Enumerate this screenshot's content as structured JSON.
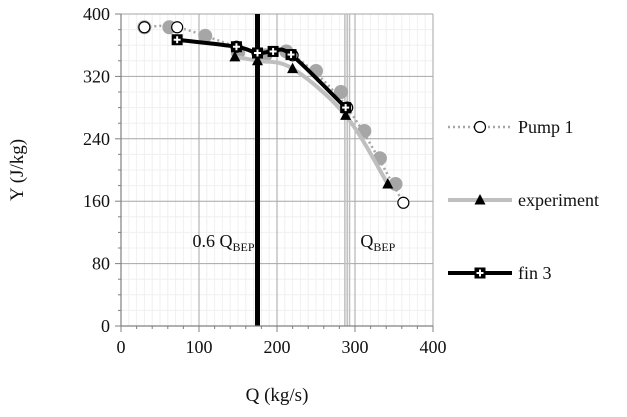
{
  "chart_data": {
    "type": "line",
    "xlabel": "Q (kg/s)",
    "ylabel": "Y (J/kg)",
    "xlim": [
      0,
      400
    ],
    "ylim": [
      0,
      400
    ],
    "x_ticks": [
      0,
      100,
      200,
      300,
      400
    ],
    "y_ticks": [
      0,
      80,
      160,
      240,
      320,
      400
    ],
    "grid": true,
    "legend_position": "right",
    "series": [
      {
        "name": "Pump 1",
        "style": "dotted",
        "color": "#a6a6a6",
        "marker": "circle-open",
        "points": [
          [
            30,
            383
          ],
          [
            72,
            383
          ],
          [
            148,
            358
          ],
          [
            175,
            350
          ],
          [
            220,
            347
          ],
          [
            290,
            280
          ],
          [
            362,
            158
          ]
        ]
      },
      {
        "name": "experiment",
        "style": "solid",
        "color": "#bfbfbf",
        "marker": "triangle",
        "points": [
          [
            146,
            345
          ],
          [
            175,
            340
          ],
          [
            220,
            330
          ],
          [
            288,
            270
          ],
          [
            342,
            182
          ]
        ]
      },
      {
        "name": "fin 3",
        "style": "solid",
        "color": "#000000",
        "marker": "plus-square",
        "points": [
          [
            72,
            367
          ],
          [
            148,
            358
          ],
          [
            175,
            350
          ],
          [
            195,
            352
          ],
          [
            218,
            348
          ],
          [
            288,
            280
          ]
        ]
      },
      {
        "name": "",
        "style": "scatter",
        "color": "#a6a6a6",
        "marker": "circle-filled",
        "points": [
          [
            30,
            383
          ],
          [
            62,
            383
          ],
          [
            108,
            372
          ],
          [
            150,
            350
          ],
          [
            185,
            347
          ],
          [
            212,
            352
          ],
          [
            250,
            327
          ],
          [
            282,
            300
          ],
          [
            312,
            250
          ],
          [
            332,
            215
          ],
          [
            352,
            182
          ]
        ]
      }
    ],
    "reference_lines": [
      {
        "x": 175,
        "color": "#000000",
        "style": "thick",
        "label_main": "0.6 Q",
        "label_sub": "BEP"
      },
      {
        "x": 287,
        "color": "#bfbfbf",
        "style": "thin",
        "label_main": "Q",
        "label_sub": "BEP"
      },
      {
        "x": 290,
        "color": "#bfbfbf",
        "style": "thin"
      },
      {
        "x": 293,
        "color": "#bfbfbf",
        "style": "thin"
      }
    ]
  }
}
